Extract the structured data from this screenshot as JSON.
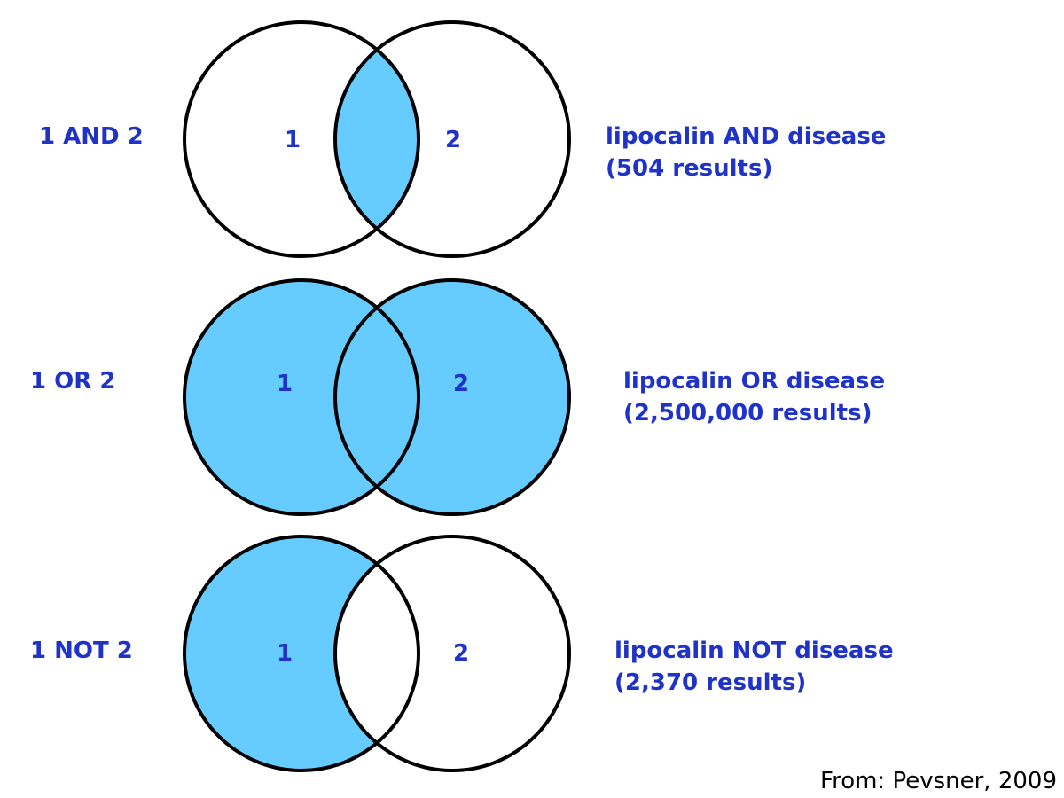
{
  "colors": {
    "text": "#1f33c8",
    "fill": "#66ccff",
    "stroke": "#000000",
    "source_text": "#000000"
  },
  "rows": [
    {
      "operator": "1 AND 2",
      "query": "lipocalin AND disease",
      "result": "(504 results)",
      "set1_label": "1",
      "set2_label": "2",
      "shaded_region": "intersection"
    },
    {
      "operator": "1 OR 2",
      "query": "lipocalin OR disease",
      "result": "(2,500,000 results)",
      "set1_label": "1",
      "set2_label": "2",
      "shaded_region": "union"
    },
    {
      "operator": "1 NOT 2",
      "query": "lipocalin NOT disease",
      "result": "(2,370 results)",
      "set1_label": "1",
      "set2_label": "2",
      "shaded_region": "set1-minus-set2"
    }
  ],
  "source": "From: Pevsner, 2009"
}
